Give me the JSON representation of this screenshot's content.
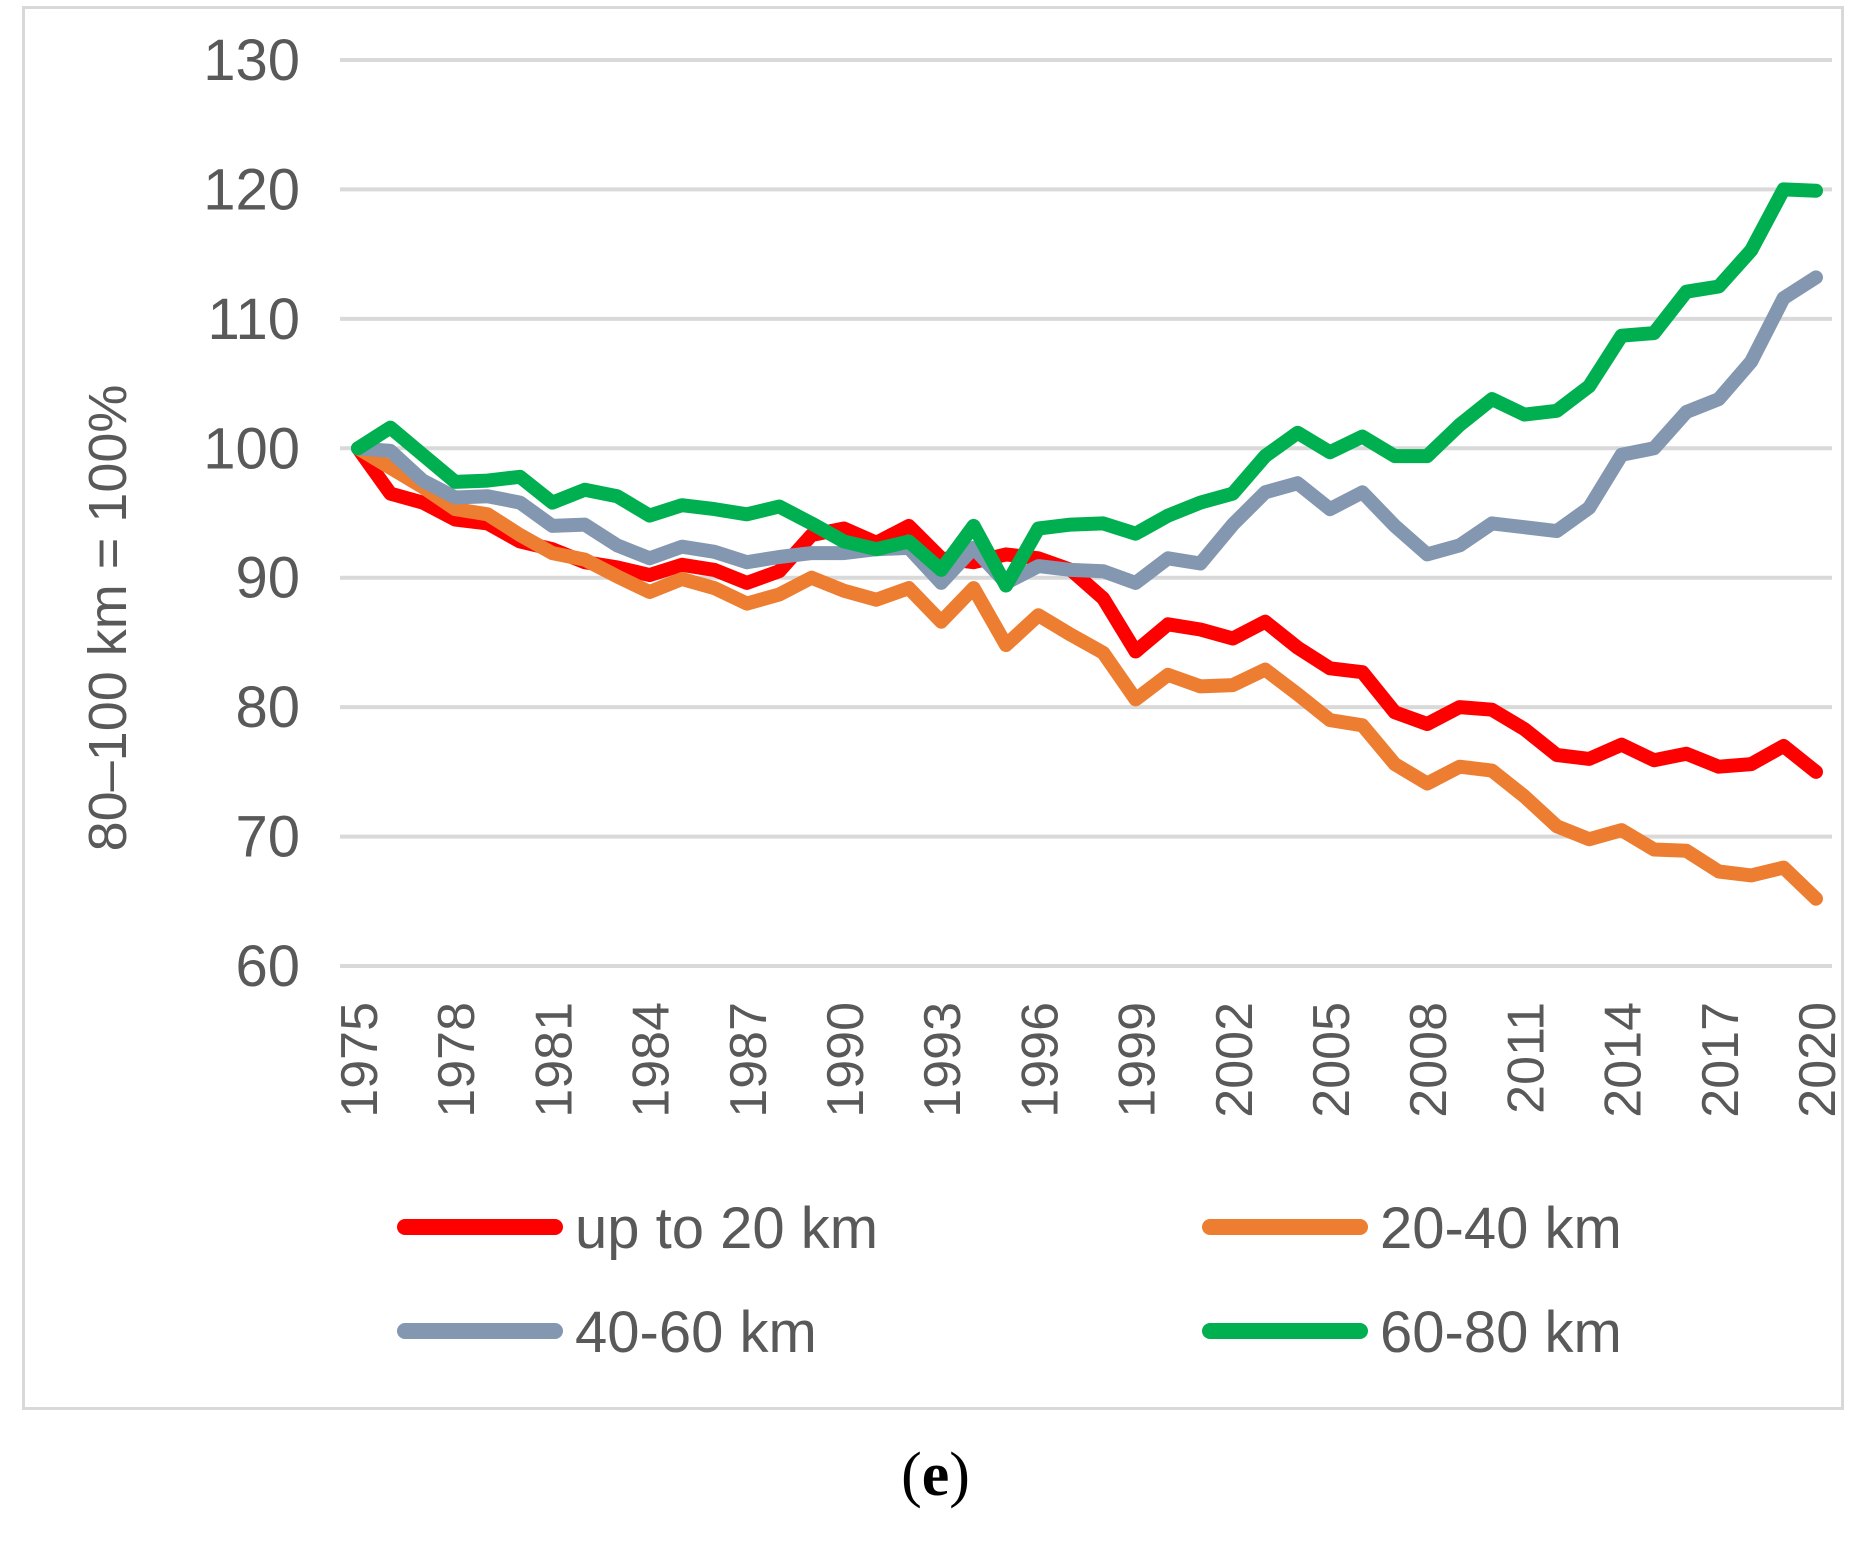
{
  "chart_data": {
    "type": "line",
    "title": "",
    "xlabel": "",
    "ylabel": "80–100 km = 100%",
    "ylim": [
      60,
      130
    ],
    "yticks": [
      "60",
      "70",
      "80",
      "90",
      "100",
      "110",
      "120",
      "130"
    ],
    "xtick_labels": [
      "1975",
      "1978",
      "1981",
      "1984",
      "1987",
      "1990",
      "1993",
      "1996",
      "1999",
      "2002",
      "2005",
      "2008",
      "2011",
      "2014",
      "2017",
      "2020"
    ],
    "grid": true,
    "legend_position": "bottom",
    "x": [
      1975,
      1976,
      1977,
      1978,
      1979,
      1980,
      1981,
      1982,
      1983,
      1984,
      1985,
      1986,
      1987,
      1988,
      1989,
      1990,
      1991,
      1992,
      1993,
      1994,
      1995,
      1996,
      1997,
      1998,
      1999,
      2000,
      2001,
      2002,
      2003,
      2004,
      2005,
      2006,
      2007,
      2008,
      2009,
      2010,
      2011,
      2012,
      2013,
      2014,
      2015,
      2016,
      2017,
      2018,
      2019,
      2020
    ],
    "series": [
      {
        "name": "up to 20 km",
        "color": "#ff0000",
        "values": [
          100,
          96.5,
          95.8,
          94.5,
          94.2,
          92.8,
          92.2,
          91.2,
          90.8,
          90.2,
          91.0,
          90.6,
          89.6,
          90.5,
          93.3,
          93.8,
          92.7,
          94.0,
          91.5,
          91.2,
          91.8,
          91.5,
          90.6,
          88.4,
          84.3,
          86.4,
          86.0,
          85.3,
          86.6,
          84.6,
          83.0,
          82.7,
          79.6,
          78.7,
          80.0,
          79.8,
          78.3,
          76.3,
          76.0,
          77.1,
          75.9,
          76.4,
          75.4,
          75.6,
          77.0,
          75.0
        ]
      },
      {
        "name": "20-40 km",
        "color": "#ed7d31",
        "values": [
          100,
          98.5,
          97.0,
          95.3,
          94.9,
          93.3,
          91.9,
          91.4,
          90.1,
          88.9,
          89.9,
          89.2,
          88.0,
          88.7,
          90.0,
          89.0,
          88.3,
          89.2,
          86.6,
          89.2,
          84.8,
          87.1,
          85.6,
          84.2,
          80.6,
          82.5,
          81.6,
          81.7,
          82.9,
          81.0,
          79.0,
          78.6,
          75.6,
          74.1,
          75.4,
          75.1,
          73.1,
          70.8,
          69.8,
          70.5,
          69.0,
          68.9,
          67.3,
          67.0,
          67.6,
          65.2
        ]
      },
      {
        "name": "40-60 km",
        "color": "#8497b0",
        "values": [
          100,
          99.8,
          97.5,
          96.2,
          96.3,
          95.8,
          94.0,
          94.1,
          92.5,
          91.5,
          92.4,
          92.0,
          91.2,
          91.6,
          91.9,
          91.9,
          92.2,
          92.3,
          89.6,
          92.3,
          89.6,
          90.9,
          90.6,
          90.5,
          89.6,
          91.5,
          91.1,
          94.1,
          96.6,
          97.3,
          95.3,
          96.6,
          94.0,
          91.8,
          92.5,
          94.2,
          93.9,
          93.6,
          95.4,
          99.5,
          100.0,
          102.8,
          103.8,
          106.7,
          111.6,
          113.2
        ]
      },
      {
        "name": "60-80 km",
        "color": "#00b050",
        "values": [
          100,
          101.6,
          99.5,
          97.4,
          97.5,
          97.8,
          95.8,
          96.8,
          96.3,
          94.8,
          95.6,
          95.3,
          94.9,
          95.5,
          94.2,
          92.8,
          92.2,
          92.8,
          90.6,
          94.0,
          89.4,
          93.8,
          94.1,
          94.2,
          93.4,
          94.8,
          95.8,
          96.5,
          99.4,
          101.2,
          99.7,
          100.9,
          99.4,
          99.4,
          101.8,
          103.8,
          102.6,
          102.9,
          104.8,
          108.7,
          108.9,
          112.1,
          112.5,
          115.3,
          120.0,
          119.9
        ]
      }
    ]
  },
  "caption": {
    "open": "(",
    "letter": "e",
    "close": ")"
  }
}
